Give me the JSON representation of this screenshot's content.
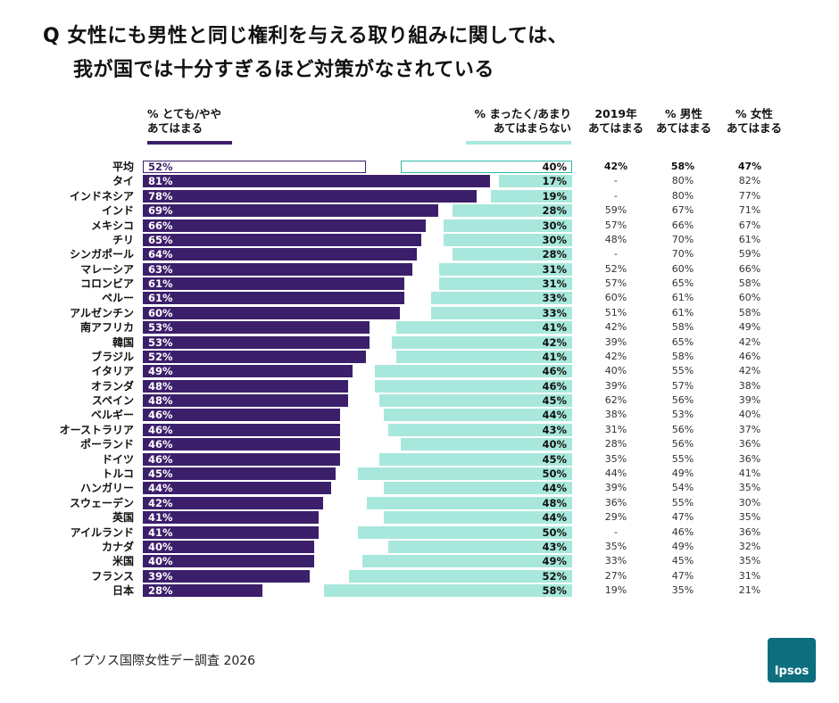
{
  "title_line1": "Q 女性にも男性と同じ権利を与える取り組みに関しては、",
  "title_line2": "我が国では十分すぎるほど対策がなされている",
  "headers": {
    "left": [
      "% とても/やや",
      "あてはまる"
    ],
    "right": [
      "% まったく/あまり",
      "あてはまらない"
    ],
    "col2019": [
      "2019年",
      "あてはまる"
    ],
    "colMale": [
      "% 男性",
      "あてはまる"
    ],
    "colFemale": [
      "% 女性",
      "あてはまる"
    ]
  },
  "colors": {
    "agree": "#3c1f6b",
    "disagree": "#a8e8dc",
    "agree_outline": "#3c1f6b",
    "disagree_outline": "#2bb8a8"
  },
  "chart_data": {
    "type": "bar",
    "categories": [
      "平均",
      "タイ",
      "インドネシア",
      "インド",
      "メキシコ",
      "チリ",
      "シンガポール",
      "マレーシア",
      "コロンビア",
      "ペルー",
      "アルゼンチン",
      "南アフリカ",
      "韓国",
      "ブラジル",
      "イタリア",
      "オランダ",
      "スペイン",
      "ベルギー",
      "オーストラリア",
      "ポーランド",
      "ドイツ",
      "トルコ",
      "ハンガリー",
      "スウェーデン",
      "英国",
      "アイルランド",
      "カナダ",
      "米国",
      "フランス",
      "日本"
    ],
    "series": [
      {
        "name": "% とても/やや あてはまる",
        "values": [
          52,
          81,
          78,
          69,
          66,
          65,
          64,
          63,
          61,
          61,
          60,
          53,
          53,
          52,
          49,
          48,
          48,
          46,
          46,
          46,
          46,
          45,
          44,
          42,
          41,
          41,
          40,
          40,
          39,
          28
        ]
      },
      {
        "name": "% まったく/あまり あてはまらない",
        "values": [
          40,
          17,
          19,
          28,
          30,
          30,
          28,
          31,
          31,
          33,
          33,
          41,
          42,
          41,
          46,
          46,
          45,
          44,
          43,
          40,
          45,
          50,
          44,
          48,
          44,
          50,
          43,
          49,
          52,
          58
        ]
      }
    ],
    "table": {
      "2019年 あてはまる": [
        "42%",
        "-",
        "-",
        "59%",
        "57%",
        "48%",
        "-",
        "52%",
        "57%",
        "60%",
        "51%",
        "42%",
        "39%",
        "42%",
        "40%",
        "39%",
        "62%",
        "38%",
        "31%",
        "28%",
        "35%",
        "44%",
        "39%",
        "36%",
        "29%",
        "-",
        "35%",
        "33%",
        "27%",
        "19%"
      ],
      "% 男性 あてはまる": [
        "58%",
        "80%",
        "80%",
        "67%",
        "66%",
        "70%",
        "70%",
        "60%",
        "65%",
        "61%",
        "61%",
        "58%",
        "65%",
        "58%",
        "55%",
        "57%",
        "56%",
        "53%",
        "56%",
        "56%",
        "55%",
        "49%",
        "54%",
        "55%",
        "47%",
        "46%",
        "49%",
        "45%",
        "47%",
        "35%"
      ],
      "% 女性 あてはまる": [
        "47%",
        "82%",
        "77%",
        "71%",
        "67%",
        "61%",
        "59%",
        "66%",
        "58%",
        "60%",
        "58%",
        "49%",
        "42%",
        "46%",
        "42%",
        "38%",
        "39%",
        "40%",
        "37%",
        "36%",
        "36%",
        "41%",
        "35%",
        "30%",
        "35%",
        "36%",
        "32%",
        "35%",
        "31%",
        "21%"
      ]
    },
    "xlim": [
      0,
      100
    ]
  },
  "footer": "イプソス国際女性デー調査  2026",
  "logo_text": "Ipsos"
}
